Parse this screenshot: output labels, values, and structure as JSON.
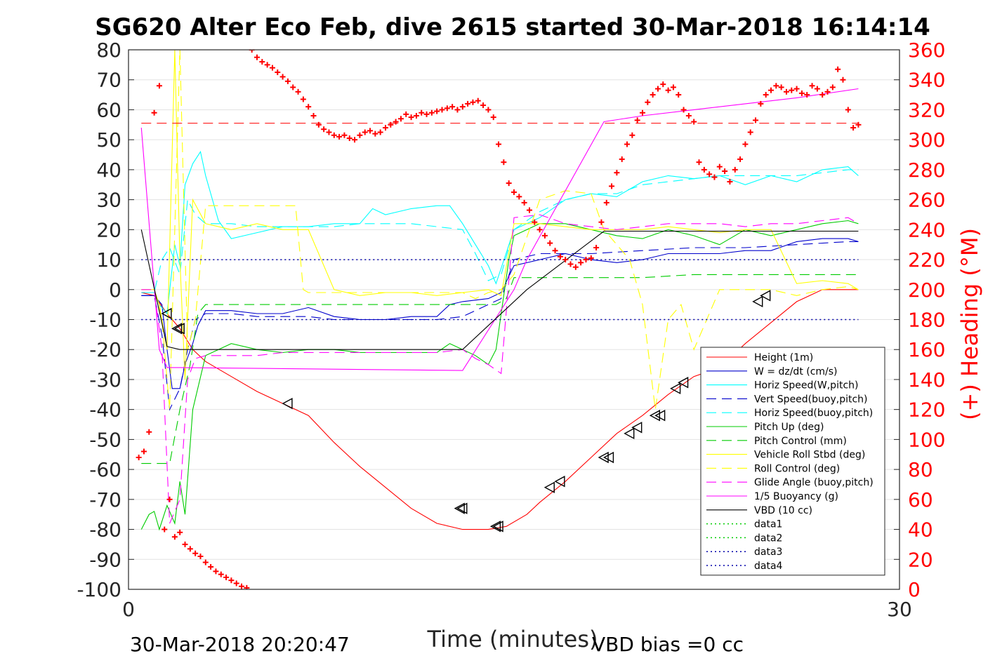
{
  "chart_data": {
    "type": "line",
    "title": "SG620 Alter Eco Feb, dive 2615 started 30-Mar-2018 16:14:14",
    "xlabel": "Time (minutes)",
    "ylabel": "",
    "ylabel_right": "(+) Heading (°M)",
    "xlim": [
      0,
      30
    ],
    "ylim": [
      -100,
      80
    ],
    "ylim_right": [
      0,
      360
    ],
    "xticks": [
      "0",
      "30"
    ],
    "yticks": [
      "80",
      "70",
      "60",
      "50",
      "40",
      "30",
      "20",
      "10",
      "0",
      "-10",
      "-20",
      "-30",
      "-40",
      "-50",
      "-60",
      "-70",
      "-80",
      "-90",
      "-100"
    ],
    "yticks_right": [
      "360",
      "340",
      "320",
      "300",
      "280",
      "260",
      "240",
      "220",
      "200",
      "180",
      "160",
      "140",
      "120",
      "100",
      "80",
      "60",
      "40",
      "20",
      "0"
    ],
    "grid": true,
    "legend_position": "bottom-right",
    "footer_left": "30-Mar-2018 20:20:47",
    "footer_right": "VBD bias =0 cc",
    "colors": {
      "red": "#ff0000",
      "blue": "#0000cc",
      "cyan": "#00ffff",
      "green": "#00cc00",
      "yellow": "#ffff00",
      "magenta": "#ff00ff",
      "black": "#000000",
      "navy": "#0000aa"
    },
    "series": [
      {
        "name": "Height (1m)",
        "color": "#ff0000",
        "style": "solid",
        "x": [
          0.5,
          1.0,
          1.5,
          2.0,
          2.5,
          3.0,
          4.0,
          5.0,
          6.0,
          7.0,
          8.0,
          9.0,
          10.0,
          11.0,
          12.0,
          13.0,
          14.0,
          14.7,
          15.5,
          16.0,
          17.0,
          18.0,
          19.0,
          20.0,
          21.0,
          22.0,
          23.0,
          24.0,
          25.0,
          26.0,
          27.0,
          28.0,
          28.4
        ],
        "y": [
          -1,
          -2,
          -8,
          -13,
          -20,
          -24,
          -29,
          -34,
          -38,
          -42,
          -51,
          -59,
          -66,
          -73,
          -78,
          -80,
          -80,
          -79,
          -75,
          -71,
          -64,
          -56,
          -48,
          -42,
          -35,
          -29,
          -26,
          -18,
          -11,
          -4,
          0,
          0,
          0
        ]
      },
      {
        "name": "W = dz/dt (cm/s)",
        "color": "#0000cc",
        "style": "solid",
        "x": [
          0.5,
          1.0,
          1.3,
          1.5,
          1.7,
          2.0,
          2.2,
          2.5,
          2.7,
          3.0,
          4.0,
          5.0,
          6.0,
          7.0,
          8.0,
          9.0,
          10.0,
          11.0,
          12.0,
          12.5,
          13.0,
          14.0,
          14.5,
          15.0,
          16.0,
          17.0,
          18.0,
          19.0,
          20.0,
          21.0,
          22.0,
          23.0,
          24.0,
          25.0,
          26.0,
          27.0,
          28.0,
          28.4
        ],
        "y": [
          -2,
          -2,
          -5,
          -20,
          -33,
          -33,
          -25,
          -18,
          -12,
          -7,
          -7,
          -8,
          -8,
          -6,
          -9,
          -10,
          -10,
          -9,
          -9,
          -5,
          -4,
          -3,
          -1,
          8,
          10,
          12,
          10,
          9,
          10,
          12,
          12,
          12,
          13,
          13,
          16,
          17,
          17,
          16
        ]
      },
      {
        "name": "Horiz Speed(W,pitch)",
        "color": "#00ffff",
        "style": "solid",
        "x": [
          0.5,
          1.0,
          1.2,
          1.5,
          1.8,
          2.0,
          2.2,
          2.5,
          2.8,
          3.0,
          3.5,
          4.0,
          5.0,
          6.0,
          7.0,
          8.0,
          9.0,
          9.5,
          10.0,
          11.0,
          12.0,
          12.5,
          13.0,
          13.5,
          14.0,
          14.3,
          15.0,
          16.0,
          17.0,
          18.0,
          19.0,
          20.0,
          21.0,
          22.0,
          23.0,
          24.0,
          25.0,
          26.0,
          27.0,
          28.0,
          28.4
        ],
        "y": [
          -1,
          -1,
          -5,
          -8,
          15,
          8,
          35,
          42,
          46,
          38,
          23,
          17,
          19,
          21,
          21,
          22,
          22,
          27,
          25,
          27,
          28,
          28,
          22,
          15,
          8,
          2,
          20,
          24,
          30,
          32,
          31,
          36,
          38,
          37,
          38,
          35,
          38,
          36,
          40,
          41,
          38
        ]
      },
      {
        "name": "Vert Speed(buoy,pitch)",
        "color": "#0000cc",
        "style": "dashed",
        "x": [
          0.5,
          1.0,
          1.3,
          1.6,
          2.0,
          2.3,
          2.6,
          3.0,
          4.0,
          5.0,
          6.0,
          7.0,
          8.0,
          9.0,
          10.0,
          11.0,
          12.0,
          13.0,
          13.5,
          14.0,
          14.5,
          15.0,
          16.0,
          18.0,
          20.0,
          22.0,
          24.0,
          26.0,
          28.0,
          28.4
        ],
        "y": [
          -2,
          -2,
          -15,
          -40,
          -33,
          -20,
          -10,
          -8,
          -8,
          -9,
          -9,
          -9,
          -10,
          -10,
          -10,
          -10,
          -10,
          -9,
          -7,
          -5,
          -3,
          10,
          12,
          12,
          13,
          14,
          14,
          15,
          16,
          16
        ]
      },
      {
        "name": "Horiz Speed(buoy,pitch)",
        "color": "#00ffff",
        "style": "dashed",
        "x": [
          0.5,
          1.0,
          1.3,
          1.6,
          2.0,
          2.3,
          2.6,
          3.0,
          4.0,
          5.0,
          6.0,
          7.0,
          8.0,
          9.0,
          10.0,
          11.0,
          12.0,
          13.0,
          13.5,
          14.0,
          14.5,
          15.0,
          16.0,
          17.0,
          18.0,
          19.0,
          20.0,
          21.0,
          22.0,
          23.0,
          24.0,
          25.0,
          26.0,
          27.0,
          28.0,
          28.4
        ],
        "y": [
          -1,
          -1,
          10,
          14,
          5,
          30,
          25,
          22,
          22,
          21,
          21,
          21,
          21,
          22,
          22,
          22,
          21,
          20,
          12,
          3,
          5,
          20,
          26,
          30,
          32,
          32,
          35,
          36,
          37,
          38,
          38,
          38,
          38,
          39,
          40,
          40
        ]
      },
      {
        "name": "Pitch Up (deg)",
        "color": "#00cc00",
        "style": "solid",
        "x": [
          0.5,
          0.8,
          1.0,
          1.2,
          1.5,
          1.8,
          2.0,
          2.2,
          2.5,
          3.0,
          4.0,
          5.0,
          6.0,
          7.0,
          8.0,
          9.0,
          10.0,
          11.0,
          12.0,
          12.5,
          13.0,
          13.5,
          14.0,
          14.3,
          14.8,
          15.0,
          16.0,
          17.0,
          18.0,
          19.0,
          20.0,
          21.0,
          22.0,
          23.0,
          24.0,
          25.0,
          26.0,
          27.0,
          28.0,
          28.4
        ],
        "y": [
          -80,
          -75,
          -74,
          -80,
          -72,
          -78,
          -64,
          -75,
          -40,
          -22,
          -18,
          -20,
          -21,
          -20,
          -20,
          -21,
          -21,
          -21,
          -21,
          -18,
          -20,
          -22,
          -25,
          -20,
          10,
          18,
          22,
          22,
          20,
          18,
          17,
          20,
          18,
          15,
          20,
          18,
          20,
          22,
          23,
          22
        ]
      },
      {
        "name": "Pitch Control (mm)",
        "color": "#00cc00",
        "style": "dashed",
        "x": [
          0.5,
          1.0,
          1.3,
          1.6,
          2.0,
          2.4,
          2.7,
          3.0,
          12.5,
          13.5,
          14.3,
          14.7,
          15.0,
          16.0,
          18.0,
          20.0,
          22.0,
          24.0,
          26.0,
          28.0,
          28.4
        ],
        "y": [
          -58,
          -58,
          -58,
          -58,
          -40,
          -25,
          -8,
          -5,
          -5,
          -5,
          -5,
          -3,
          4,
          4,
          4,
          4,
          5,
          5,
          5,
          5,
          5
        ]
      },
      {
        "name": "Vehicle Roll Stbd (deg)",
        "color": "#ffff00",
        "style": "solid",
        "x": [
          0.5,
          1.0,
          1.2,
          1.5,
          1.8,
          2.0,
          2.2,
          2.5,
          3.0,
          4.0,
          5.0,
          6.0,
          7.0,
          8.0,
          9.0,
          10.0,
          11.0,
          12.0,
          13.0,
          14.0,
          14.5,
          15.0,
          16.0,
          17.0,
          18.0,
          19.0,
          20.0,
          21.0,
          22.0,
          23.0,
          24.0,
          25.0,
          26.0,
          27.0,
          28.0,
          28.4
        ],
        "y": [
          0,
          0,
          -5,
          -20,
          80,
          10,
          -30,
          30,
          22,
          20,
          22,
          20,
          20,
          0,
          -2,
          -1,
          -1,
          -2,
          -1,
          0,
          -2,
          22,
          22,
          21,
          20,
          20,
          20,
          21,
          20,
          19,
          20,
          20,
          2,
          3,
          2,
          0
        ]
      },
      {
        "name": "Roll Control (deg)",
        "color": "#ffff00",
        "style": "dashed",
        "x": [
          0.5,
          1.0,
          1.3,
          1.6,
          2.0,
          2.3,
          2.6,
          3.0,
          4.0,
          5.0,
          6.0,
          6.5,
          6.8,
          7.0,
          8.0,
          10.0,
          12.0,
          13.0,
          13.5,
          14.0,
          14.5,
          15.0,
          16.0,
          17.0,
          18.0,
          18.5,
          19.0,
          19.5,
          20.0,
          20.5,
          21.0,
          21.5,
          22.0,
          23.0,
          24.0,
          25.0,
          26.0,
          27.0,
          28.0,
          28.4
        ],
        "y": [
          0,
          0,
          -10,
          -40,
          80,
          -20,
          -10,
          28,
          28,
          28,
          28,
          28,
          0,
          -1,
          -1,
          -1,
          -1,
          -1,
          -3,
          -1,
          0,
          5,
          30,
          33,
          32,
          20,
          15,
          10,
          -5,
          -40,
          -10,
          -5,
          -20,
          0,
          0,
          0,
          -2,
          0,
          1,
          0
        ]
      },
      {
        "name": "Glide Angle (buoy,pitch)",
        "color": "#ff00ff",
        "style": "dashed",
        "x": [
          0.5,
          1.0,
          1.3,
          1.6,
          2.0,
          2.3,
          2.6,
          3.0,
          4.0,
          5.0,
          6.0,
          7.0,
          8.0,
          9.0,
          10.0,
          11.0,
          12.0,
          13.0,
          13.5,
          14.0,
          14.5,
          15.0,
          16.0,
          17.0,
          18.0,
          19.0,
          20.0,
          21.0,
          22.0,
          23.0,
          24.0,
          25.0,
          26.0,
          27.0,
          28.0,
          28.4
        ],
        "y": [
          0,
          0,
          -20,
          -78,
          -70,
          -30,
          -23,
          -22,
          -22,
          -22,
          -21,
          -21,
          -21,
          -21,
          -21,
          -21,
          -21,
          -20,
          -23,
          -25,
          -28,
          24,
          25,
          22,
          21,
          20,
          21,
          22,
          22,
          22,
          21,
          22,
          22,
          23,
          24,
          22
        ]
      },
      {
        "name": "1/5 Buoyancy (g)",
        "color": "#ff00ff",
        "style": "solid",
        "x": [
          0.5,
          1.2,
          1.5,
          2.0,
          13.0,
          15.0,
          15.5,
          18.5,
          20.0,
          22.0,
          24.0,
          26.0,
          28.4
        ],
        "y": [
          54,
          -20,
          -26,
          -26,
          -27,
          0,
          10,
          56,
          58,
          60,
          62,
          64,
          67
        ]
      },
      {
        "name": "VBD (10 cc)",
        "color": "#000000",
        "style": "solid",
        "x": [
          0.5,
          1.5,
          2.0,
          13.0,
          15.5,
          18.5,
          28.4
        ],
        "y": [
          20,
          -19,
          -20,
          -20,
          0,
          19.5,
          19.5
        ]
      },
      {
        "name": "data1",
        "color": "#00cc00",
        "style": "dotted",
        "x": [],
        "y": []
      },
      {
        "name": "data2",
        "color": "#00cc00",
        "style": "dotted",
        "x": [],
        "y": []
      },
      {
        "name": "data3",
        "color": "#0000aa",
        "style": "dotted",
        "x": [
          0.5,
          28.4
        ],
        "y": [
          10,
          10
        ]
      },
      {
        "name": "data4",
        "color": "#0000aa",
        "style": "dotted",
        "x": [
          0.5,
          28.4
        ],
        "y": [
          -10,
          -10
        ]
      }
    ],
    "heading_ref": {
      "value": 311,
      "color": "#ff0000",
      "style": "dashed",
      "x": [
        0.5,
        28.4
      ]
    },
    "heading_points": {
      "color": "#ff0000",
      "axis": "right",
      "x": [
        0.4,
        0.6,
        0.8,
        1.0,
        1.2,
        1.4,
        1.6,
        1.8,
        2.0,
        2.2,
        2.4,
        2.6,
        2.8,
        3.0,
        3.2,
        3.4,
        3.6,
        3.8,
        4.0,
        4.2,
        4.4,
        4.6,
        4.8,
        5.0,
        5.2,
        5.4,
        5.6,
        5.8,
        6.0,
        6.2,
        6.4,
        6.6,
        6.8,
        7.0,
        7.2,
        7.4,
        7.6,
        7.8,
        8.0,
        8.2,
        8.4,
        8.6,
        8.8,
        9.0,
        9.2,
        9.4,
        9.6,
        9.8,
        10.0,
        10.2,
        10.4,
        10.6,
        10.8,
        11.0,
        11.2,
        11.4,
        11.6,
        11.8,
        12.0,
        12.2,
        12.4,
        12.6,
        12.8,
        13.0,
        13.2,
        13.4,
        13.6,
        13.8,
        14.0,
        14.2,
        14.4,
        14.6,
        14.8,
        15.0,
        15.2,
        15.4,
        15.6,
        15.8,
        16.0,
        16.2,
        16.4,
        16.6,
        16.8,
        17.0,
        17.2,
        17.4,
        17.6,
        17.8,
        18.0,
        18.2,
        18.4,
        18.6,
        18.8,
        19.0,
        19.2,
        19.4,
        19.6,
        19.8,
        20.0,
        20.2,
        20.4,
        20.6,
        20.8,
        21.0,
        21.2,
        21.4,
        21.6,
        21.8,
        22.0,
        22.2,
        22.4,
        22.6,
        22.8,
        23.0,
        23.2,
        23.4,
        23.6,
        23.8,
        24.0,
        24.2,
        24.4,
        24.6,
        24.8,
        25.0,
        25.2,
        25.4,
        25.6,
        25.8,
        26.0,
        26.2,
        26.4,
        26.6,
        26.8,
        27.0,
        27.2,
        27.4,
        27.6,
        27.8,
        28.0,
        28.2,
        28.4
      ],
      "y": [
        88,
        92,
        105,
        318,
        336,
        40,
        60,
        35,
        38,
        30,
        27,
        24,
        22,
        18,
        15,
        12,
        10,
        8,
        6,
        4,
        2,
        1,
        360,
        355,
        352,
        350,
        348,
        345,
        342,
        339,
        335,
        332,
        327,
        322,
        316,
        310,
        307,
        305,
        303,
        302,
        303,
        301,
        300,
        303,
        305,
        306,
        304,
        305,
        308,
        310,
        312,
        314,
        317,
        315,
        316,
        318,
        317,
        318,
        319,
        320,
        321,
        322,
        320,
        322,
        324,
        325,
        326,
        323,
        320,
        315,
        297,
        285,
        271,
        265,
        262,
        258,
        253,
        245,
        240,
        236,
        231,
        226,
        222,
        220,
        217,
        215,
        218,
        220,
        221,
        228,
        245,
        258,
        269,
        278,
        287,
        297,
        303,
        313,
        318,
        325,
        330,
        334,
        337,
        333,
        335,
        330,
        320,
        316,
        312,
        285,
        280,
        277,
        275,
        282,
        279,
        272,
        280,
        287,
        297,
        305,
        313,
        324,
        330,
        333,
        336,
        335,
        332,
        333,
        334,
        331,
        330,
        336,
        334,
        330,
        332,
        335,
        347,
        340,
        320,
        308,
        310
      ]
    },
    "markers": {
      "color": "#000000",
      "shape": "triangle-open",
      "on_series": "Height (1m)",
      "x": [
        1.5,
        1.9,
        2.0,
        6.2,
        12.9,
        13.0,
        14.3,
        14.4,
        16.4,
        16.8,
        18.5,
        18.7,
        19.5,
        19.8,
        20.5,
        20.7,
        21.3,
        21.6,
        22.7,
        23.0,
        24.5,
        24.8
      ],
      "y": [
        -8,
        -13,
        -13,
        -38,
        -73,
        -73,
        -79,
        -79,
        -66,
        -64,
        -56,
        -56,
        -48,
        -46,
        -42,
        -42,
        -33,
        -31,
        -26,
        -25,
        -4,
        -2
      ]
    }
  }
}
